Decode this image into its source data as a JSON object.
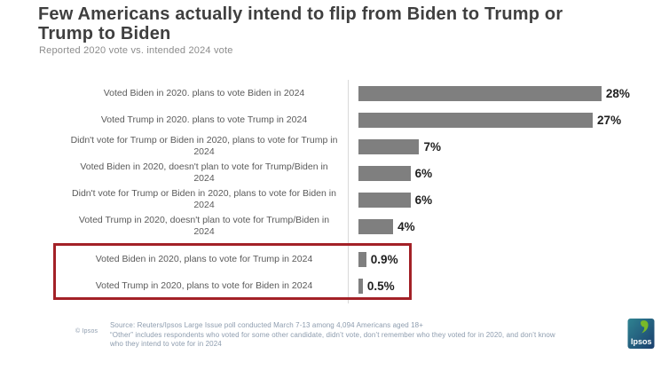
{
  "title_lines": [
    "Few Americans actually intend to flip from Biden to Trump or",
    "Trump to Biden"
  ],
  "subtitle": "Reported 2020 vote vs. intended 2024 vote",
  "chart_data": {
    "type": "bar",
    "orientation": "horizontal",
    "title": "Few Americans actually intend to flip from Biden to Trump or Trump to Biden",
    "subtitle": "Reported 2020 vote vs. intended 2024 vote",
    "categories": [
      "Voted Biden in 2020. plans to vote Biden in 2024",
      "Voted Trump in 2020. plans to vote Trump in 2024",
      "Didn't vote for Trump or Biden in 2020, plans to vote for Trump in 2024",
      "Voted Biden in 2020, doesn't plan to vote for Trump/Biden in 2024",
      "Didn't vote for Trump or Biden in 2020, plans to vote for Biden in 2024",
      "Voted Trump in 2020, doesn't plan to vote for Trump/Biden in 2024",
      "Voted Biden in 2020, plans to vote for Trump in 2024",
      "Voted Trump in 2020, plans to vote for Biden in 2024"
    ],
    "values": [
      28,
      27,
      7,
      6,
      6,
      4,
      0.9,
      0.5
    ],
    "value_labels": [
      "28%",
      "27%",
      "7%",
      "6%",
      "6%",
      "4%",
      "0.9%",
      "0.5%"
    ],
    "xlim": [
      0,
      29
    ],
    "grid": false,
    "legend": null,
    "bar_color": "#7f7f7f",
    "highlight": {
      "rows": [
        6,
        7
      ],
      "box_color": "#a32127"
    },
    "rows": [
      {
        "label_lines": [
          "Voted Biden in 2020. plans to vote Biden in 2024"
        ],
        "value": 28,
        "value_label": "28%",
        "highlight": false
      },
      {
        "label_lines": [
          "Voted Trump in 2020. plans to vote Trump in 2024"
        ],
        "value": 27,
        "value_label": "27%",
        "highlight": false
      },
      {
        "label_lines": [
          "Didn't vote for Trump or Biden in 2020, plans to vote for  Trump in",
          "2024"
        ],
        "value": 7,
        "value_label": "7%",
        "highlight": false
      },
      {
        "label_lines": [
          "Voted Biden in 2020, doesn't plan to vote for Trump/Biden in",
          "2024"
        ],
        "value": 6,
        "value_label": "6%",
        "highlight": false
      },
      {
        "label_lines": [
          "Didn't vote for Trump or Biden in 2020, plans to vote for  Biden in",
          "2024"
        ],
        "value": 6,
        "value_label": "6%",
        "highlight": false
      },
      {
        "label_lines": [
          "Voted Trump in 2020, doesn't plan to vote for Trump/Biden in",
          "2024"
        ],
        "value": 4,
        "value_label": "4%",
        "highlight": false
      },
      {
        "label_lines": [
          "Voted Biden in 2020, plans to vote for Trump in 2024"
        ],
        "value": 0.9,
        "value_label": "0.9%",
        "highlight": true
      },
      {
        "label_lines": [
          "Voted Trump in 2020, plans to vote for Biden in 2024"
        ],
        "value": 0.5,
        "value_label": "0.5%",
        "highlight": true
      }
    ]
  },
  "footer": {
    "copyright": "© Ipsos",
    "source_lines": [
      "Source: Reuters/Ipsos  Large Issue poll conducted March 7-13 among 4,094 Americans aged 18+",
      "“Other” includes respondents who voted for some other candidate, didn’t vote, don’t remember who they voted for in 2020, and don’t know",
      "who they intend to vote for in 2024"
    ],
    "logo_text": "Ipsos"
  },
  "colors": {
    "title": "#3f3f3f",
    "subtitle": "#8c8c8c",
    "bar": "#7f7f7f",
    "highlight_box": "#a32127",
    "footer_text": "#8d9cae",
    "logo_teal": "#2f8391",
    "logo_navy": "#1b3f6e",
    "logo_green": "#79b928"
  }
}
